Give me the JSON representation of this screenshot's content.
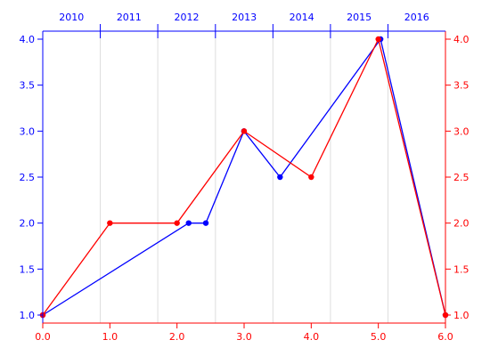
{
  "chart_data": {
    "type": "line",
    "title": "",
    "xlabel": "",
    "ylabel": "",
    "grid": "vertical lines at top-axis year boundaries",
    "legend": "none",
    "axes": {
      "bottom": {
        "color": "#ff0000",
        "range": [
          0,
          6
        ],
        "ticks": [
          0,
          1,
          2,
          3,
          4,
          5,
          6
        ],
        "tick_labels": [
          "0.0",
          "1.0",
          "2.0",
          "3.0",
          "4.0",
          "5.0",
          "6.0"
        ]
      },
      "left": {
        "color": "#0000ff",
        "range": [
          1,
          4
        ],
        "ticks": [
          1,
          1.5,
          2,
          2.5,
          3,
          3.5,
          4
        ],
        "tick_labels": [
          "1.0",
          "1.5",
          "2.0",
          "2.5",
          "3.0",
          "3.5",
          "4.0"
        ]
      },
      "right": {
        "color": "#ff0000",
        "range": [
          1,
          4
        ],
        "ticks": [
          1,
          1.5,
          2,
          2.5,
          3,
          3.5,
          4
        ],
        "tick_labels": [
          "1.0",
          "1.5",
          "2.0",
          "2.5",
          "3.0",
          "3.5",
          "4.0"
        ]
      },
      "top": {
        "color": "#0000ff",
        "type": "time",
        "range": [
          "2010-01-01",
          "2016-12-31"
        ],
        "categories": [
          "2010",
          "2011",
          "2012",
          "2013",
          "2014",
          "2015",
          "2016"
        ],
        "boundaries": [
          "2011-01-01",
          "2012-01-01",
          "2013-01-01",
          "2014-01-01",
          "2015-01-01",
          "2016-01-01"
        ]
      }
    },
    "series": [
      {
        "color": "#0000ff",
        "x_axis": "top",
        "y_axis": "left",
        "x": [
          "2010-01-01",
          "2012-07-15",
          "2012-11-01",
          "2013-07-01",
          "2014-02-15",
          "2015-11-15",
          "2016-12-31"
        ],
        "y": [
          1.0,
          2.0,
          2.0,
          3.0,
          2.5,
          4.0,
          1.0
        ]
      },
      {
        "color": "#ff0000",
        "x_axis": "bottom",
        "y_axis": "right",
        "x": [
          0,
          1,
          2,
          3,
          4,
          5,
          6
        ],
        "y": [
          1.0,
          2.0,
          2.0,
          3.0,
          2.5,
          4.0,
          1.0
        ]
      }
    ]
  }
}
